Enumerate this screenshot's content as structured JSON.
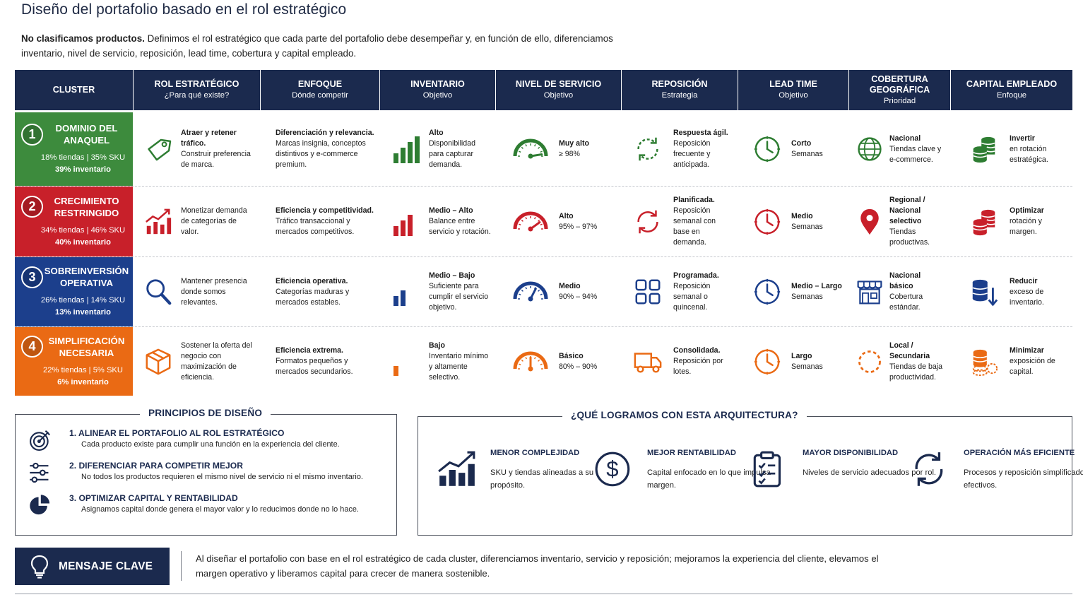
{
  "page": {
    "title": "Diseño del portafolio basado en el rol estratégico",
    "intro_bold": "No clasificamos productos.",
    "intro_rest": " Definimos el rol estratégico que cada parte del portafolio debe desempeñar y, en función de ello, diferenciamos inventario, nivel de servicio, reposición, lead time, cobertura y capital empleado."
  },
  "table": {
    "headers": [
      {
        "title": "CLUSTER",
        "sub": ""
      },
      {
        "title": "ROL ESTRATÉGICO",
        "sub": "¿Para qué existe?"
      },
      {
        "title": "ENFOQUE",
        "sub": "Dónde competir"
      },
      {
        "title": "INVENTARIO",
        "sub": "Objetivo"
      },
      {
        "title": "NIVEL DE SERVICIO",
        "sub": "Objetivo"
      },
      {
        "title": "REPOSICIÓN",
        "sub": "Estrategia"
      },
      {
        "title": "LEAD TIME",
        "sub": "Objetivo"
      },
      {
        "title": "COBERTURA GEOGRÁFICA",
        "sub": "Prioridad"
      },
      {
        "title": "CAPITAL EMPLEADO",
        "sub": "Enfoque"
      }
    ],
    "rows": [
      {
        "num": "1",
        "name": "DOMINIO DEL ANAQUEL",
        "color": "#3d8b3d",
        "accent": "#2e7d32",
        "stats1": "18% tiendas | 35% SKU",
        "stats2": "39% inventario",
        "rol_b": "Atraer y retener tráfico.",
        "rol_n": "Construir preferencia de marca.",
        "enf_b": "Diferenciación y relevancia.",
        "enf_n": "Marcas insignia, conceptos distintivos y e-commerce premium.",
        "inv_b": "Alto",
        "inv_n": "Disponibilidad para capturar demanda.",
        "inv_level": 4,
        "ns_b": "Muy alto",
        "ns_n": "≥ 98%",
        "ns_level": 0.95,
        "rep_b": "Respuesta ágil.",
        "rep_n": "Reposición frecuente y anticipada.",
        "rep_icon": "refresh-dashed-icon",
        "lt_b": "Corto",
        "lt_n": "Semanas",
        "cob_b": "Nacional",
        "cob_n": "Tiendas clave y e-commerce.",
        "cob_icon": "globe-icon",
        "cap_b": "Invertir",
        "cap_n": "en rotación estratégica.",
        "cap_icon": "coins-stack-icon"
      },
      {
        "num": "2",
        "name": "CRECIMIENTO RESTRINGIDO",
        "color": "#c8202a",
        "accent": "#c8202a",
        "stats1": "34% tiendas | 46% SKU",
        "stats2": "40% inventario",
        "rol_b": "",
        "rol_n": "Monetizar demanda de categorías de valor.",
        "enf_b": "Eficiencia y competitividad.",
        "enf_n": "Tráfico transaccional y mercados competitivos.",
        "inv_b": "Medio – Alto",
        "inv_n": "Balance entre servicio y rotación.",
        "inv_level": 3,
        "ns_b": "Alto",
        "ns_n": "95% – 97%",
        "ns_level": 0.8,
        "rep_b": "Planificada.",
        "rep_n": "Reposición semanal con base en demanda.",
        "rep_icon": "refresh-icon",
        "lt_b": "Medio",
        "lt_n": "Semanas",
        "cob_b": "Regional / Nacional selectivo",
        "cob_n": "Tiendas productivas.",
        "cob_icon": "map-pin-icon",
        "cap_b": "Optimizar",
        "cap_n": "rotación y margen.",
        "cap_icon": "coins-stack-icon"
      },
      {
        "num": "3",
        "name": "SOBREINVERSIÓN OPERATIVA",
        "color": "#1c3f8c",
        "accent": "#1c3f8c",
        "stats1": "26% tiendas | 14% SKU",
        "stats2": "13% inventario",
        "rol_b": "",
        "rol_n": "Mantener presencia donde somos relevantes.",
        "enf_b": "Eficiencia operativa.",
        "enf_n": "Categorías maduras y mercados estables.",
        "inv_b": "Medio – Bajo",
        "inv_n": "Suficiente para cumplir el servicio objetivo.",
        "inv_level": 2,
        "ns_b": "Medio",
        "ns_n": "90% – 94%",
        "ns_level": 0.65,
        "rep_b": "Programada.",
        "rep_n": "Reposición semanal o quincenal.",
        "rep_icon": "grid-icon",
        "lt_b": "Medio – Largo",
        "lt_n": "Semanas",
        "cob_b": "Nacional básico",
        "cob_n": "Cobertura estándar.",
        "cob_icon": "store-icon",
        "cap_b": "Reducir",
        "cap_n": "exceso de inventario.",
        "cap_icon": "database-down-icon"
      },
      {
        "num": "4",
        "name": "SIMPLIFICACIÓN NECESARIA",
        "color": "#ea6a14",
        "accent": "#ea6a14",
        "stats1": "22% tiendas | 5% SKU",
        "stats2": "6% inventario",
        "rol_b": "",
        "rol_n": "Sostener la oferta del negocio con maximización de eficiencia.",
        "enf_b": "Eficiencia extrema.",
        "enf_n": "Formatos pequeños y mercados secundarios.",
        "inv_b": "Bajo",
        "inv_n": "Inventario mínimo y altamente selectivo.",
        "inv_level": 1,
        "ns_b": "Básico",
        "ns_n": "80% – 90%",
        "ns_level": 0.5,
        "rep_b": "Consolidada.",
        "rep_n": "Reposición por lotes.",
        "rep_icon": "truck-icon",
        "lt_b": "Largo",
        "lt_n": "Semanas",
        "cob_b": "Local / Secundaria",
        "cob_n": "Tiendas de baja productividad.",
        "cob_icon": "dashed-circle-icon",
        "cap_b": "Minimizar",
        "cap_n": "exposición de capital.",
        "cap_icon": "coins-dashed-icon"
      }
    ]
  },
  "principles": {
    "title": "PRINCIPIOS DE DISEÑO",
    "items": [
      {
        "head": "1. ALINEAR EL PORTAFOLIO AL ROL ESTRATÉGICO",
        "desc": "Cada producto existe para cumplir una función en la experiencia del cliente.",
        "icon": "target-icon"
      },
      {
        "head": "2. DIFERENCIAR PARA COMPETIR MEJOR",
        "desc": "No todos los productos requieren el mismo nivel de servicio ni el mismo inventario.",
        "icon": "sliders-icon"
      },
      {
        "head": "3. OPTIMIZAR CAPITAL Y RENTABILIDAD",
        "desc": "Asignamos capital donde genera el mayor valor y lo reducimos donde no lo hace.",
        "icon": "pie-chart-icon"
      }
    ]
  },
  "achievements": {
    "title": "¿QUÉ LOGRAMOS CON ESTA ARQUITECTURA?",
    "items": [
      {
        "head": "MENOR COMPLEJIDAD",
        "desc": "SKU y tiendas alineadas a su propósito.",
        "icon": "growth-chart-icon"
      },
      {
        "head": "MEJOR RENTABILIDAD",
        "desc": "Capital enfocado en lo que impulsa margen.",
        "icon": "dollar-icon"
      },
      {
        "head": "MAYOR DISPONIBILIDAD",
        "desc": "Niveles de servicio adecuados por rol.",
        "icon": "clipboard-check-icon"
      },
      {
        "head": "OPERACIÓN MÁS EFICIENTE",
        "desc": "Procesos y reposición simplificados y efectivos.",
        "icon": "cycle-icon"
      }
    ]
  },
  "key_message": {
    "label": "MENSAJE CLAVE",
    "text": "Al diseñar el portafolio con base en el rol estratégico de cada cluster, diferenciamos inventario, servicio y reposición; mejoramos la experiencia del cliente, elevamos el margen operativo y liberamos capital para crecer de manera sostenible."
  },
  "colors": {
    "navy": "#1b2a4e",
    "green": "#3d8b3d",
    "red": "#c8202a",
    "blue": "#1c3f8c",
    "orange": "#ea6a14"
  }
}
